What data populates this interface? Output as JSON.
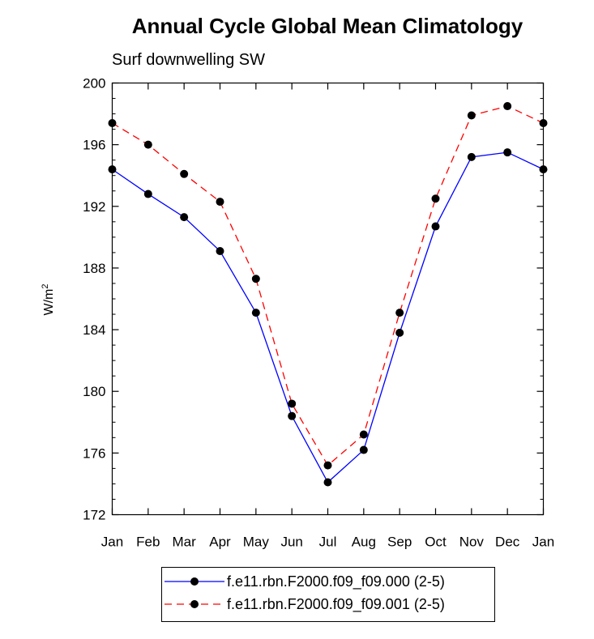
{
  "chart_data": {
    "type": "line",
    "title": "Annual Cycle Global Mean Climatology",
    "subtitle": "Surf downwelling SW",
    "xlabel": "",
    "ylabel": "W/m",
    "ylabel_superscript": "2",
    "categories": [
      "Jan",
      "Feb",
      "Mar",
      "Apr",
      "May",
      "Jun",
      "Jul",
      "Aug",
      "Sep",
      "Oct",
      "Nov",
      "Dec",
      "Jan"
    ],
    "ylim": [
      172,
      200
    ],
    "yticks": [
      172,
      176,
      180,
      184,
      188,
      192,
      196,
      200
    ],
    "series": [
      {
        "name": "f.e11.rbn.F2000.f09_f09.000 (2-5)",
        "color": "#0000ff",
        "style": "solid",
        "values": [
          194.4,
          192.8,
          191.3,
          189.1,
          185.1,
          178.4,
          174.1,
          176.2,
          183.8,
          190.7,
          195.2,
          195.5,
          194.4
        ]
      },
      {
        "name": "f.e11.rbn.F2000.f09_f09.001 (2-5)",
        "color": "#ff0000",
        "style": "dashed",
        "values": [
          197.4,
          196.0,
          194.1,
          192.3,
          187.3,
          179.2,
          175.2,
          177.2,
          185.1,
          192.5,
          197.9,
          198.5,
          197.4
        ]
      }
    ],
    "legend_position": "bottom-center",
    "grid": false
  }
}
